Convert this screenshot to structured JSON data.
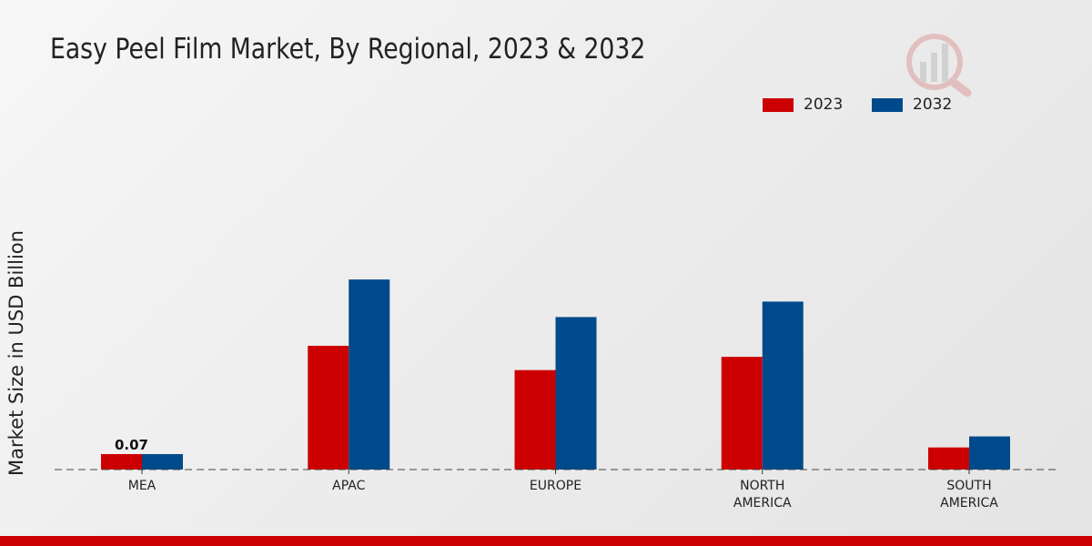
{
  "title": "Easy Peel Film Market, By Regional, 2023 & 2032",
  "chart_data": {
    "type": "bar",
    "title": "Easy Peel Film Market, By Regional, 2023 & 2032",
    "xlabel": "",
    "ylabel": "Market Size in USD Billion",
    "categories": [
      "MEA",
      "APAC",
      "EUROPE",
      "NORTH AMERICA",
      "SOUTH AMERICA"
    ],
    "category_lines": [
      [
        "MEA"
      ],
      [
        "APAC"
      ],
      [
        "EUROPE"
      ],
      [
        "NORTH",
        "AMERICA"
      ],
      [
        "SOUTH",
        "AMERICA"
      ]
    ],
    "series": [
      {
        "name": "2023",
        "color": "#cc0000",
        "values": [
          0.07,
          0.56,
          0.45,
          0.51,
          0.1
        ]
      },
      {
        "name": "2032",
        "color": "#004a8b",
        "values": [
          0.07,
          0.86,
          0.69,
          0.76,
          0.15
        ]
      }
    ],
    "data_labels": [
      {
        "series": 0,
        "index": 0,
        "text": "0.07"
      }
    ],
    "ylim": [
      0,
      1.1
    ],
    "grid": false,
    "legend_position": "top-right"
  }
}
